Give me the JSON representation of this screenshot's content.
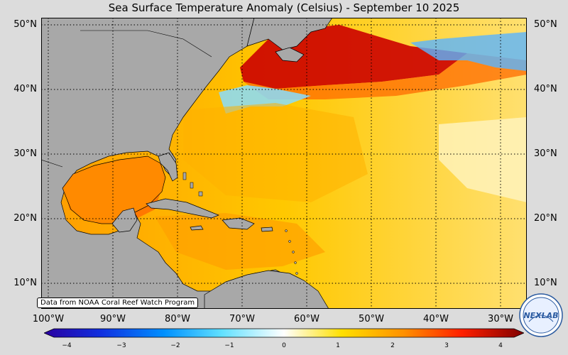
{
  "title": "Sea Surface Temperature Anomaly (Celsius) - September 10 2025",
  "credit": "Data from NOAA Coral Reef Watch Program",
  "lat_labels": [
    "50°N",
    "40°N",
    "30°N",
    "20°N",
    "10°N"
  ],
  "lon_labels": [
    "100°W",
    "90°W",
    "80°W",
    "70°W",
    "60°W",
    "50°W",
    "40°W",
    "30°W"
  ],
  "colorbar": {
    "ticks": [
      "−4",
      "−3",
      "−2",
      "−1",
      "0",
      "1",
      "2",
      "3",
      "4"
    ],
    "range": [
      -4,
      4
    ]
  },
  "logo": {
    "text": "NEXLAB"
  },
  "colors": {
    "land": "#a8a8a8",
    "ocean_warm": "#ffb400",
    "ocean_hot": "#c80000",
    "ocean_cool": "#5ab4ff"
  }
}
